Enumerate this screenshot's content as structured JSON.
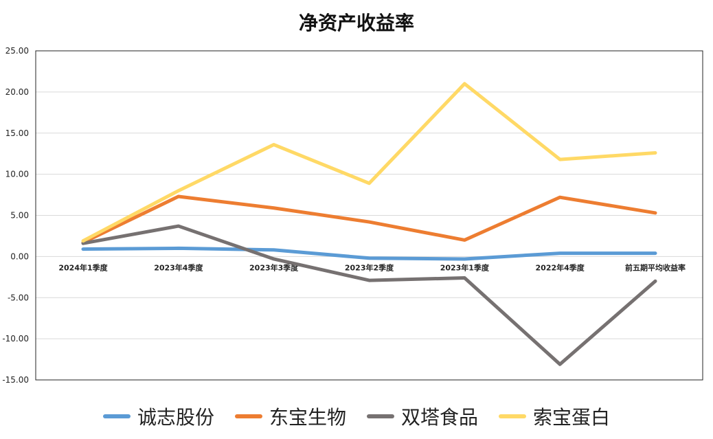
{
  "chart_data": {
    "type": "line",
    "title": "净资产收益率",
    "categories": [
      "2024年1季度",
      "2023年4季度",
      "2023年3季度",
      "2023年2季度",
      "2023年1季度",
      "2022年4季度",
      "前五期平均收益率"
    ],
    "y_ticks": [
      "25.00",
      "20.00",
      "15.00",
      "10.00",
      "5.00",
      "0.00",
      "-5.00",
      "-10.00",
      "-15.00"
    ],
    "ylim": [
      -15,
      25
    ],
    "grid": true,
    "legend_position": "bottom",
    "series": [
      {
        "name": "诚志股份",
        "color": "#5b9bd5",
        "values": [
          0.9,
          1.0,
          0.8,
          -0.2,
          -0.3,
          0.4,
          0.4
        ]
      },
      {
        "name": "东宝生物",
        "color": "#ed7d31",
        "values": [
          1.7,
          7.3,
          5.9,
          4.2,
          2.0,
          7.2,
          5.3
        ]
      },
      {
        "name": "双塔食品",
        "color": "#767171",
        "values": [
          1.6,
          3.7,
          -0.3,
          -2.9,
          -2.6,
          -13.1,
          -3.0
        ]
      },
      {
        "name": "索宝蛋白",
        "color": "#ffd966",
        "values": [
          1.9,
          8.0,
          13.6,
          8.9,
          21.0,
          11.8,
          12.6
        ]
      }
    ]
  }
}
